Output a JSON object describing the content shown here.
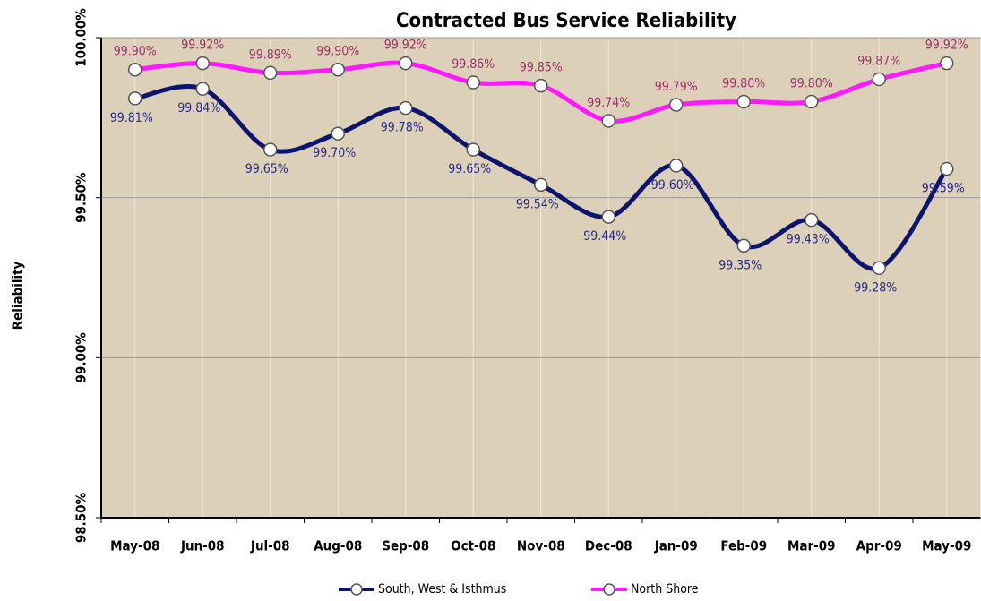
{
  "chart_data": {
    "type": "line",
    "title": "Contracted Bus Service Reliability",
    "y_label": "Reliability",
    "categories": [
      "May-08",
      "Jun-08",
      "Jul-08",
      "Aug-08",
      "Sep-08",
      "Oct-08",
      "Nov-08",
      "Dec-08",
      "Jan-09",
      "Feb-09",
      "Mar-09",
      "Apr-09",
      "May-09"
    ],
    "series": [
      {
        "name": "South, West & Isthmus",
        "color": "#0d1470",
        "values": [
          99.81,
          99.84,
          99.65,
          99.7,
          99.78,
          99.65,
          99.54,
          99.44,
          99.6,
          99.35,
          99.43,
          99.28,
          99.59
        ],
        "value_labels": [
          "99.81%",
          "99.84%",
          "99.65%",
          "99.70%",
          "99.78%",
          "99.65%",
          "99.54%",
          "99.44%",
          "99.60%",
          "99.35%",
          "99.43%",
          "99.28%",
          "99.59%"
        ]
      },
      {
        "name": "North Shore",
        "color": "#ff19ff",
        "values": [
          99.9,
          99.92,
          99.89,
          99.9,
          99.92,
          99.86,
          99.85,
          99.74,
          99.79,
          99.8,
          99.8,
          99.87,
          99.92
        ],
        "value_labels": [
          "99.90%",
          "99.92%",
          "99.89%",
          "99.90%",
          "99.92%",
          "99.86%",
          "99.85%",
          "99.74%",
          "99.79%",
          "99.80%",
          "99.80%",
          "99.87%",
          "99.92%"
        ]
      }
    ],
    "ylim": [
      98.5,
      100
    ],
    "yticks": [
      {
        "value": 98.5,
        "label": "98.50%"
      },
      {
        "value": 99,
        "label": "99.00%"
      },
      {
        "value": 99.5,
        "label": "99.50%"
      },
      {
        "value": 100,
        "label": "100.00%"
      }
    ],
    "grid": true,
    "legend": "bottom"
  }
}
